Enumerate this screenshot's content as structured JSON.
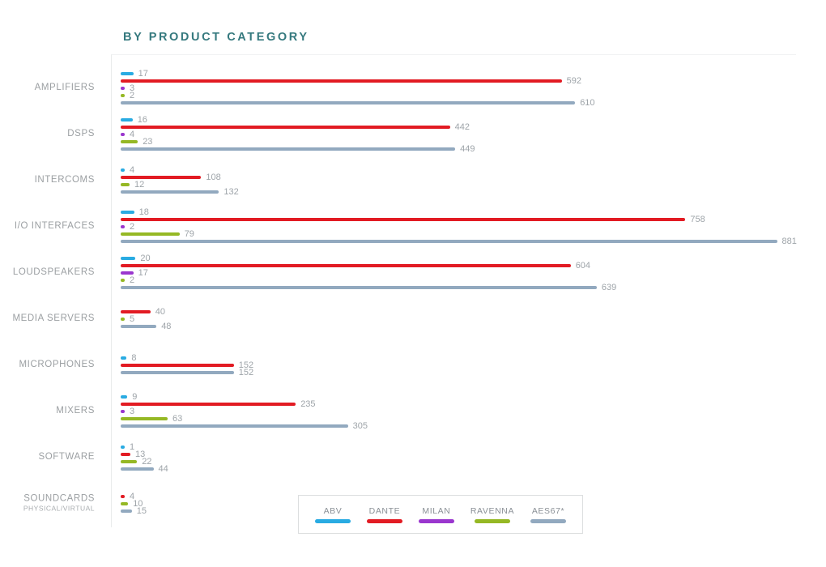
{
  "title": "BY PRODUCT CATEGORY",
  "chart_data": {
    "type": "bar",
    "orientation": "horizontal",
    "title": "BY PRODUCT CATEGORY",
    "xlim": [
      0,
      881
    ],
    "grid": false,
    "legend_position": "bottom",
    "categories": [
      "AMPLIFIERS",
      "DSPS",
      "INTERCOMS",
      "I/O INTERFACES",
      "LOUDSPEAKERS",
      "MEDIA SERVERS",
      "MICROPHONES",
      "MIXERS",
      "SOFTWARE",
      "SOUNDCARDS PHYSICAL/VIRTUAL"
    ],
    "category_labels": [
      {
        "label": "AMPLIFIERS",
        "sublabel": null
      },
      {
        "label": "DSPS",
        "sublabel": null
      },
      {
        "label": "INTERCOMS",
        "sublabel": null
      },
      {
        "label": "I/O INTERFACES",
        "sublabel": null
      },
      {
        "label": "LOUDSPEAKERS",
        "sublabel": null
      },
      {
        "label": "MEDIA SERVERS",
        "sublabel": null
      },
      {
        "label": "MICROPHONES",
        "sublabel": null
      },
      {
        "label": "MIXERS",
        "sublabel": null
      },
      {
        "label": "SOFTWARE",
        "sublabel": null
      },
      {
        "label": "SOUNDCARDS",
        "sublabel": "PHYSICAL/VIRTUAL"
      }
    ],
    "series": [
      {
        "name": "ABV",
        "color": "#29ABE2",
        "values": [
          17,
          16,
          4,
          18,
          20,
          null,
          8,
          9,
          1,
          null
        ]
      },
      {
        "name": "DANTE",
        "color": "#E21B23",
        "values": [
          592,
          442,
          108,
          758,
          604,
          40,
          152,
          235,
          13,
          4
        ]
      },
      {
        "name": "MILAN",
        "color": "#9A36CE",
        "values": [
          3,
          4,
          null,
          2,
          17,
          null,
          null,
          3,
          null,
          null
        ]
      },
      {
        "name": "RAVENNA",
        "color": "#95B824",
        "values": [
          2,
          23,
          12,
          79,
          2,
          5,
          null,
          63,
          22,
          10
        ]
      },
      {
        "name": "AES67*",
        "color": "#92A9BF",
        "values": [
          610,
          449,
          132,
          881,
          639,
          48,
          152,
          305,
          44,
          15
        ]
      }
    ]
  },
  "legend": {
    "items": [
      {
        "label": "ABV",
        "color": "#29ABE2"
      },
      {
        "label": "DANTE",
        "color": "#E21B23"
      },
      {
        "label": "MILAN",
        "color": "#9A36CE"
      },
      {
        "label": "RAVENNA",
        "color": "#95B824"
      },
      {
        "label": "AES67*",
        "color": "#92A9BF"
      }
    ]
  },
  "colors": {
    "title": "#35797E",
    "category_label": "#9B9FA2",
    "value_label": "#9EA4A9",
    "axis_line": "#E9EBEC",
    "legend_border": "#DCDEDF"
  }
}
